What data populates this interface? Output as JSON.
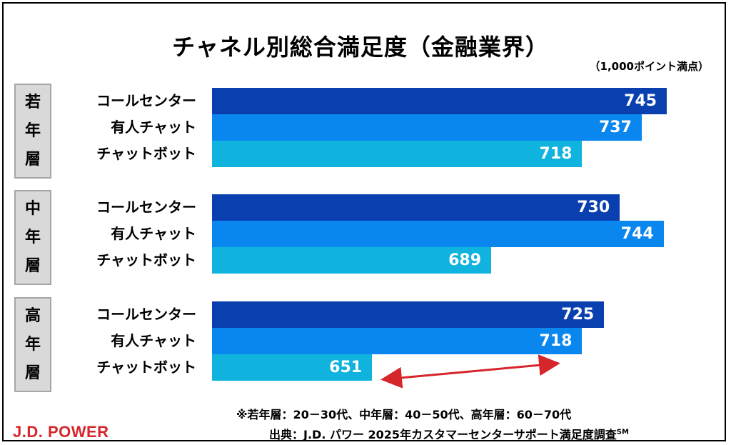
{
  "title": "チャネル別総合満足度（金融業界）",
  "unit_note": "（1,000ポイント満点）",
  "colors": {
    "call_center": "#0a3fb0",
    "human_chat": "#0a87ee",
    "chatbot": "#0fb3de",
    "arrow": "#d6252b",
    "brand": "#d6252b"
  },
  "chart_data": {
    "type": "bar",
    "orientation": "horizontal",
    "title": "チャネル別総合満足度（金融業界）",
    "groups": [
      "若年層",
      "中年層",
      "高年層"
    ],
    "categories": [
      "コールセンター",
      "有人チャット",
      "チャットボット"
    ],
    "series": [
      {
        "group": "若年層",
        "values": [
          745,
          737,
          718
        ]
      },
      {
        "group": "中年層",
        "values": [
          730,
          744,
          689
        ]
      },
      {
        "group": "高年層",
        "values": [
          725,
          718,
          651
        ]
      }
    ],
    "xlim": [
      600,
      760
    ],
    "annotation": "arrow between 高年層 チャットボット (651) and 有人チャット (718)"
  },
  "group_labels": [
    [
      "若",
      "年",
      "層"
    ],
    [
      "中",
      "年",
      "層"
    ],
    [
      "高",
      "年",
      "層"
    ]
  ],
  "footnote": "※若年層：20－30代、中年層：40－50代、高年層：60－70代",
  "source": "出典：J.D. パワー 2025年カスタマーセンターサポート満足度調査",
  "source_mark": "SM",
  "brand_logo": "J.D. POWER"
}
